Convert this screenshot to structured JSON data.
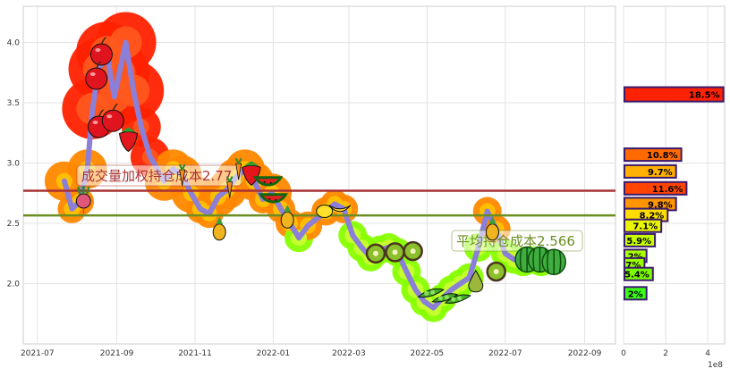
{
  "chart_data": [
    {
      "type": "line",
      "x_ticks": [
        "2021-07",
        "2021-09",
        "2021-11",
        "2022-01",
        "2022-03",
        "2022-05",
        "2022-07",
        "2022-09"
      ],
      "y_ticks": [
        "2.0",
        "2.5",
        "3.0",
        "3.5",
        "4.0"
      ],
      "ylim": [
        1.5,
        4.3
      ],
      "grid": true,
      "price_series": {
        "x": [
          "2021-07-22",
          "2021-07-28",
          "2021-08-03",
          "2021-08-09",
          "2021-08-13",
          "2021-08-18",
          "2021-08-24",
          "2021-08-30",
          "2021-09-03",
          "2021-09-08",
          "2021-09-14",
          "2021-09-20",
          "2021-09-27",
          "2021-10-08",
          "2021-10-15",
          "2021-10-22",
          "2021-10-29",
          "2021-11-05",
          "2021-11-12",
          "2021-11-19",
          "2021-11-26",
          "2021-12-03",
          "2021-12-10",
          "2021-12-17",
          "2021-12-24",
          "2021-12-31",
          "2022-01-07",
          "2022-01-14",
          "2022-01-21",
          "2022-01-28",
          "2022-02-11",
          "2022-02-18",
          "2022-02-25",
          "2022-03-04",
          "2022-03-11",
          "2022-03-18",
          "2022-03-25",
          "2022-04-01",
          "2022-04-08",
          "2022-04-15",
          "2022-04-22",
          "2022-04-29",
          "2022-05-06",
          "2022-05-13",
          "2022-05-20",
          "2022-05-27",
          "2022-06-03",
          "2022-06-10",
          "2022-06-17",
          "2022-06-24",
          "2022-07-01",
          "2022-07-08",
          "2022-07-15",
          "2022-07-22",
          "2022-07-29"
        ],
        "y": [
          2.85,
          2.62,
          2.68,
          2.95,
          3.45,
          3.78,
          3.92,
          3.55,
          3.75,
          4.0,
          3.6,
          3.3,
          3.05,
          2.85,
          2.95,
          2.9,
          2.75,
          2.62,
          2.58,
          2.72,
          2.78,
          2.88,
          2.95,
          2.85,
          2.7,
          2.75,
          2.62,
          2.5,
          2.38,
          2.48,
          2.6,
          2.66,
          2.62,
          2.4,
          2.3,
          2.22,
          2.28,
          2.3,
          2.26,
          2.1,
          1.95,
          1.85,
          1.8,
          1.88,
          1.95,
          2.0,
          2.05,
          2.3,
          2.6,
          2.45,
          2.25,
          2.2,
          2.18,
          2.2,
          2.18
        ]
      },
      "reference_lines": [
        {
          "label": "成交量加权持仓成本2.77",
          "value": 2.77,
          "color": "#a83232"
        },
        {
          "label": "平均持仓成本2.566",
          "value": 2.566,
          "color": "#6b8e23"
        }
      ],
      "fruit_markers": [
        {
          "date": "2021-08-06",
          "price": 2.7,
          "icon": "radish-icon"
        },
        {
          "date": "2021-08-20",
          "price": 3.9,
          "icon": "apple-icon"
        },
        {
          "date": "2021-08-16",
          "price": 3.7,
          "icon": "apple-icon"
        },
        {
          "date": "2021-08-18",
          "price": 3.3,
          "icon": "apple-icon"
        },
        {
          "date": "2021-08-29",
          "price": 3.35,
          "icon": "apple-icon"
        },
        {
          "date": "2021-09-10",
          "price": 3.2,
          "icon": "strawberry-icon"
        },
        {
          "date": "2021-10-22",
          "price": 2.9,
          "icon": "carrot-icon"
        },
        {
          "date": "2021-11-20",
          "price": 2.45,
          "icon": "pineapple-icon"
        },
        {
          "date": "2021-11-28",
          "price": 2.8,
          "icon": "carrot-icon"
        },
        {
          "date": "2021-12-05",
          "price": 2.95,
          "icon": "carrot-icon"
        },
        {
          "date": "2021-12-15",
          "price": 2.92,
          "icon": "strawberry-icon"
        },
        {
          "date": "2021-12-28",
          "price": 2.82,
          "icon": "watermelon-icon"
        },
        {
          "date": "2022-01-01",
          "price": 2.68,
          "icon": "watermelon-icon"
        },
        {
          "date": "2022-01-12",
          "price": 2.55,
          "icon": "pineapple-icon"
        },
        {
          "date": "2022-02-10",
          "price": 2.6,
          "icon": "lemon-icon"
        },
        {
          "date": "2022-02-22",
          "price": 2.62,
          "icon": "banana-icon"
        },
        {
          "date": "2022-03-22",
          "price": 2.25,
          "icon": "kiwi-icon"
        },
        {
          "date": "2022-04-06",
          "price": 2.26,
          "icon": "kiwi-icon"
        },
        {
          "date": "2022-04-20",
          "price": 2.27,
          "icon": "kiwi-icon"
        },
        {
          "date": "2022-05-04",
          "price": 1.92,
          "icon": "peapod-icon"
        },
        {
          "date": "2022-05-15",
          "price": 1.88,
          "icon": "peapod-icon"
        },
        {
          "date": "2022-05-25",
          "price": 1.87,
          "icon": "peapod-icon"
        },
        {
          "date": "2022-06-08",
          "price": 2.02,
          "icon": "pear-icon"
        },
        {
          "date": "2022-06-21",
          "price": 2.45,
          "icon": "pineapple-icon"
        },
        {
          "date": "2022-06-24",
          "price": 2.1,
          "icon": "kiwi-icon"
        },
        {
          "date": "2022-07-18",
          "price": 2.2,
          "icon": "watermelon-icon"
        },
        {
          "date": "2022-07-28",
          "price": 2.2,
          "icon": "watermelon-icon"
        },
        {
          "date": "2022-08-08",
          "price": 2.18,
          "icon": "watermelon-icon"
        }
      ],
      "glow_colors": {
        "high": "#ff2200",
        "mid": "#ff8800",
        "low": "#88ff00"
      }
    },
    {
      "type": "bar",
      "orientation": "horizontal",
      "x_ticks": [
        "0",
        "2",
        "4"
      ],
      "x_unit_label": "1e8",
      "xlim": [
        0,
        4.8
      ],
      "ylim": [
        1.5,
        4.3
      ],
      "bars": [
        {
          "price": 3.57,
          "value": 4.7,
          "label": "18.5%",
          "color": "#ff2200"
        },
        {
          "price": 3.07,
          "value": 2.7,
          "label": "10.8%",
          "color": "#ff6a00"
        },
        {
          "price": 2.93,
          "value": 2.45,
          "label": "9.7%",
          "color": "#ffb000"
        },
        {
          "price": 2.79,
          "value": 2.95,
          "label": "11.6%",
          "color": "#ff4500"
        },
        {
          "price": 2.66,
          "value": 2.45,
          "label": "9.8%",
          "color": "#ff9500"
        },
        {
          "price": 2.57,
          "value": 2.05,
          "label": "8.2%",
          "color": "#ffdd00"
        },
        {
          "price": 2.48,
          "value": 1.75,
          "label": "7.1%",
          "color": "#e9f500"
        },
        {
          "price": 2.36,
          "value": 1.45,
          "label": "5.9%",
          "color": "#c6ff00"
        },
        {
          "price": 2.23,
          "value": 1.05,
          "label": "2%",
          "color": "#aaff00"
        },
        {
          "price": 2.16,
          "value": 0.95,
          "label": "7%",
          "color": "#9cff00"
        },
        {
          "price": 2.08,
          "value": 1.35,
          "label": "5.4%",
          "color": "#7cff00"
        },
        {
          "price": 1.92,
          "value": 1.05,
          "label": "2%",
          "color": "#39ff14"
        }
      ]
    }
  ]
}
